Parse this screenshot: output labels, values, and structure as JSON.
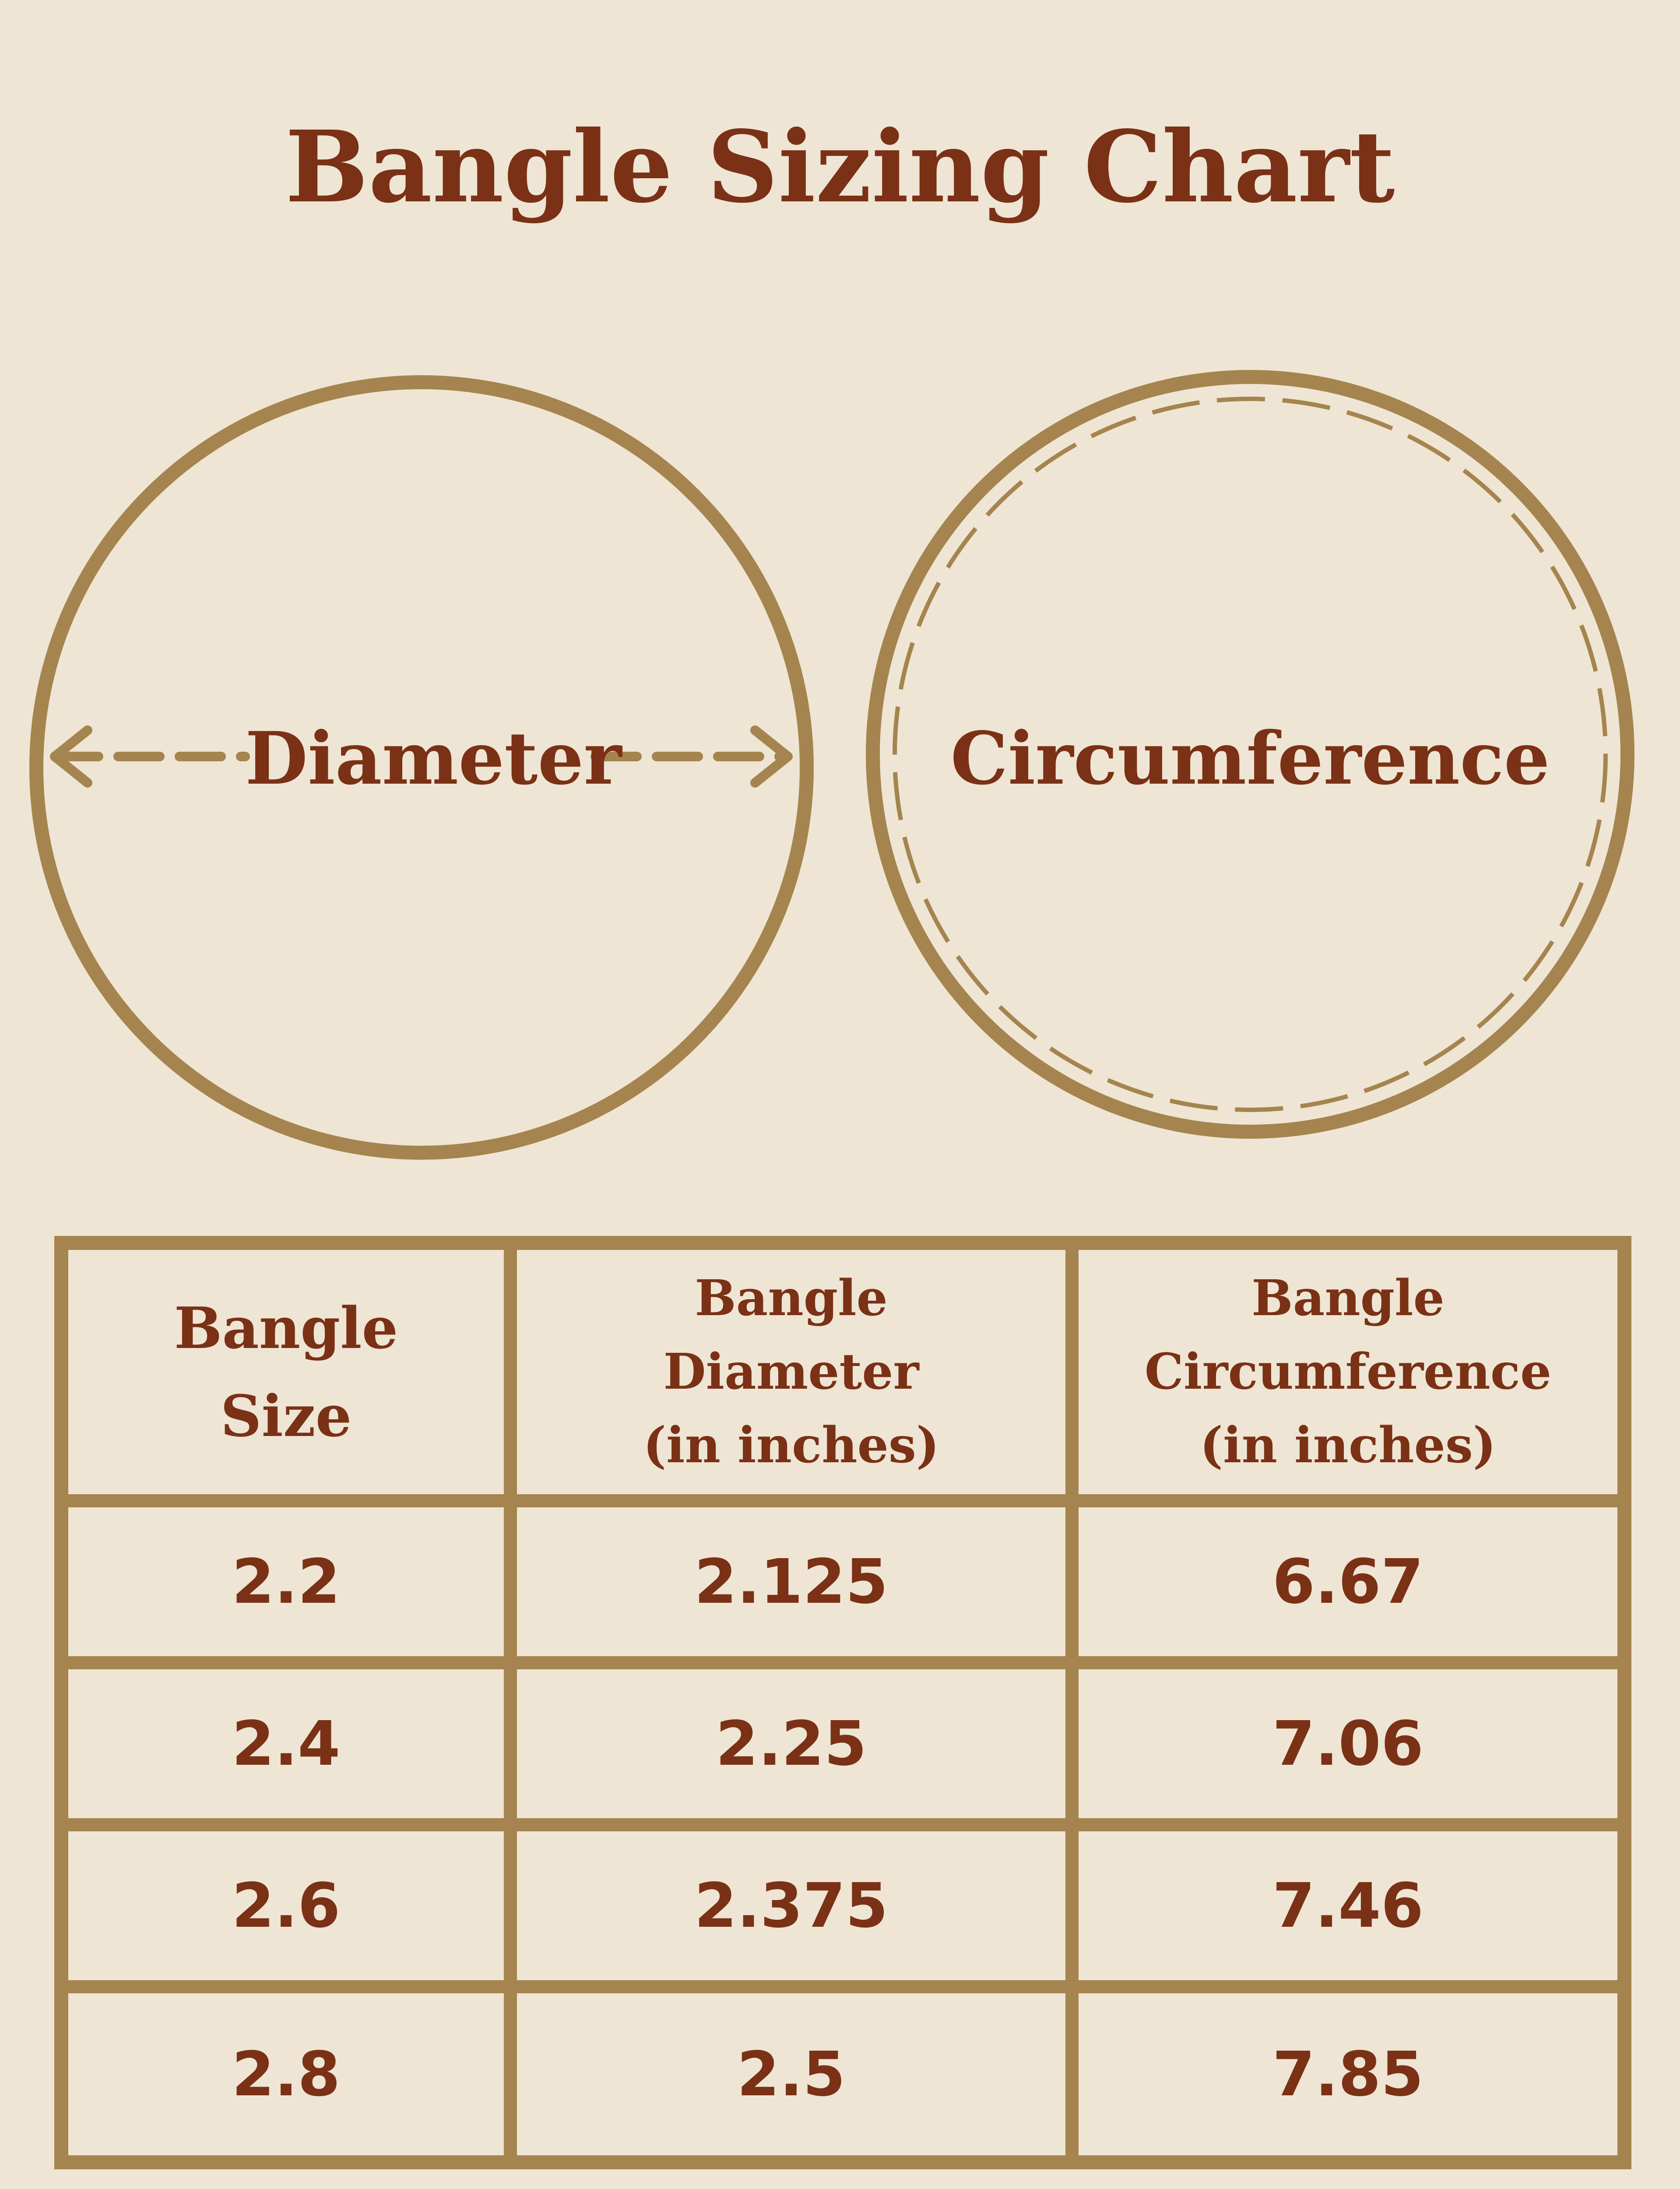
{
  "title": "Bangle Sizing Chart",
  "diagrams": {
    "diameter_label": "Diameter",
    "circumference_label": "Circumference"
  },
  "colors": {
    "gold": "#a5844f",
    "brown": "#7a3116",
    "background": "#efe5d4"
  },
  "table": {
    "headers": [
      [
        "Bangle",
        "Size"
      ],
      [
        "Bangle",
        "Diameter",
        "(in inches)"
      ],
      [
        "Bangle",
        "Circumference",
        "(in inches)"
      ]
    ],
    "rows": [
      [
        "2.2",
        "2.125",
        "6.67"
      ],
      [
        "2.4",
        "2.25",
        "7.06"
      ],
      [
        "2.6",
        "2.375",
        "7.46"
      ],
      [
        "2.8",
        "2.5",
        "7.85"
      ]
    ]
  }
}
